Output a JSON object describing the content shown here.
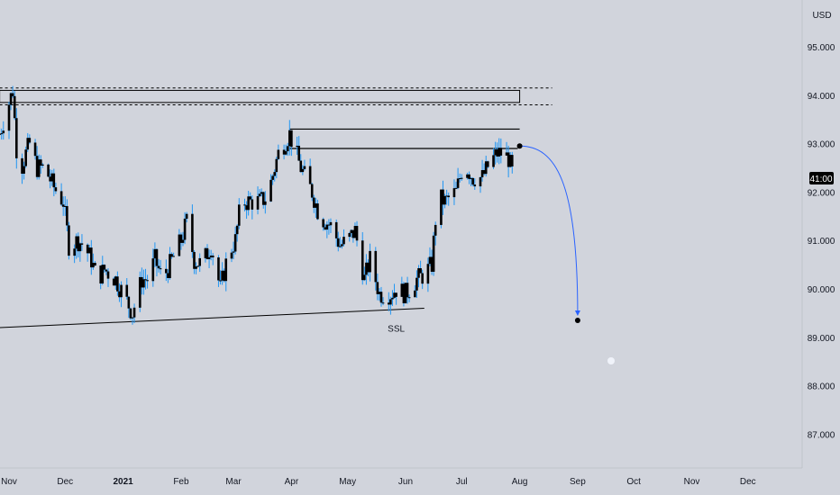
{
  "currency_label": "USD",
  "price_badge": "41:00",
  "colors": {
    "background": "#d1d4dc",
    "axis_bg": "#d1d4dc",
    "candle_body": "#000000",
    "wick": "#2196f3",
    "projection": "#2962ff",
    "lines": "#000000",
    "badge_bg": "#000000",
    "badge_text": "#ffffff"
  },
  "chart_data": {
    "type": "candlestick",
    "y_axis": {
      "ticks": [
        "95.000",
        "94.000",
        "93.000",
        "92.000",
        "91.000",
        "90.000",
        "89.000",
        "88.000",
        "87.000"
      ],
      "tick_values": [
        95,
        94,
        93,
        92,
        91,
        90,
        89,
        88,
        87
      ],
      "range": [
        86.6,
        95.6
      ],
      "position": "right"
    },
    "x_axis": {
      "labels": [
        {
          "text": "Nov",
          "date": "2020-11-01"
        },
        {
          "text": "Dec",
          "date": "2020-12-01"
        },
        {
          "text": "2021",
          "date": "2021-01-01",
          "bold": true
        },
        {
          "text": "Feb",
          "date": "2021-02-01"
        },
        {
          "text": "Mar",
          "date": "2021-03-01"
        },
        {
          "text": "Apr",
          "date": "2021-04-01"
        },
        {
          "text": "May",
          "date": "2021-05-01"
        },
        {
          "text": "Jun",
          "date": "2021-06-01"
        },
        {
          "text": "Jul",
          "date": "2021-07-01"
        },
        {
          "text": "Aug",
          "date": "2021-08-01"
        },
        {
          "text": "Sep",
          "date": "2021-09-01"
        },
        {
          "text": "Oct",
          "date": "2021-10-01"
        },
        {
          "text": "Nov",
          "date": "2021-11-01"
        },
        {
          "text": "Dec",
          "date": "2021-12-01"
        }
      ]
    },
    "price_path": [
      [
        "2020-10-27",
        93.2
      ],
      [
        "2020-11-03",
        94.1
      ],
      [
        "2020-11-06",
        92.3
      ],
      [
        "2020-11-10",
        92.8
      ],
      [
        "2020-11-12",
        93.0
      ],
      [
        "2020-11-16",
        92.5
      ],
      [
        "2020-11-20",
        92.5
      ],
      [
        "2020-11-25",
        92.1
      ],
      [
        "2020-11-30",
        91.8
      ],
      [
        "2020-12-03",
        90.9
      ],
      [
        "2020-12-08",
        91.0
      ],
      [
        "2020-12-11",
        90.9
      ],
      [
        "2020-12-15",
        90.6
      ],
      [
        "2020-12-18",
        90.2
      ],
      [
        "2020-12-22",
        90.4
      ],
      [
        "2020-12-28",
        90.2
      ],
      [
        "2021-01-01",
        89.9
      ],
      [
        "2021-01-06",
        89.5
      ],
      [
        "2021-01-11",
        90.2
      ],
      [
        "2021-01-14",
        90.2
      ],
      [
        "2021-01-18",
        90.6
      ],
      [
        "2021-01-22",
        90.2
      ],
      [
        "2021-01-26",
        90.5
      ],
      [
        "2021-02-01",
        91.0
      ],
      [
        "2021-02-04",
        91.4
      ],
      [
        "2021-02-08",
        90.6
      ],
      [
        "2021-02-12",
        90.5
      ],
      [
        "2021-02-17",
        90.9
      ],
      [
        "2021-02-22",
        90.0
      ],
      [
        "2021-02-26",
        90.7
      ],
      [
        "2021-03-02",
        91.0
      ],
      [
        "2021-03-05",
        91.8
      ],
      [
        "2021-03-10",
        91.8
      ],
      [
        "2021-03-15",
        91.8
      ],
      [
        "2021-03-19",
        91.9
      ],
      [
        "2021-03-25",
        92.8
      ],
      [
        "2021-03-31",
        93.2
      ],
      [
        "2021-04-06",
        92.5
      ],
      [
        "2021-04-12",
        92.0
      ],
      [
        "2021-04-16",
        91.5
      ],
      [
        "2021-04-22",
        91.3
      ],
      [
        "2021-04-27",
        90.9
      ],
      [
        "2021-05-01",
        91.0
      ],
      [
        "2021-05-05",
        91.2
      ],
      [
        "2021-05-10",
        90.2
      ],
      [
        "2021-05-13",
        90.6
      ],
      [
        "2021-05-18",
        89.9
      ],
      [
        "2021-05-24",
        89.9
      ],
      [
        "2021-05-27",
        90.0
      ],
      [
        "2021-06-01",
        89.9
      ],
      [
        "2021-06-07",
        90.2
      ],
      [
        "2021-06-11",
        90.3
      ],
      [
        "2021-06-15",
        90.5
      ],
      [
        "2021-06-18",
        91.9
      ],
      [
        "2021-06-22",
        91.8
      ],
      [
        "2021-06-28",
        92.0
      ],
      [
        "2021-07-02",
        92.6
      ],
      [
        "2021-07-07",
        92.3
      ],
      [
        "2021-07-12",
        92.3
      ],
      [
        "2021-07-16",
        92.6
      ],
      [
        "2021-07-20",
        92.8
      ],
      [
        "2021-07-22",
        92.8
      ],
      [
        "2021-07-26",
        92.7
      ],
      [
        "2021-07-28",
        92.4
      ]
    ],
    "supply_zone": {
      "from": "2020-10-27",
      "to": "2021-08-01",
      "top": 94.1,
      "bottom": 93.85
    },
    "projection_dashed_lines": [
      94.15,
      93.8
    ],
    "resistance_lines": [
      {
        "from": "2021-03-31",
        "to": "2021-08-01",
        "price": 93.3
      },
      {
        "from": "2021-03-31",
        "to": "2021-07-31",
        "price": 92.9
      }
    ],
    "ssl_trendline": {
      "from": [
        "2020-10-27",
        89.2
      ],
      "to": [
        "2021-06-11",
        89.6
      ]
    },
    "projection_curve": {
      "start": [
        "2021-08-01",
        92.95
      ],
      "end": [
        "2021-09-01",
        89.35
      ]
    },
    "annotations": [
      {
        "text": "SSL",
        "date": "2021-05-27",
        "price": 89.3
      }
    ]
  }
}
